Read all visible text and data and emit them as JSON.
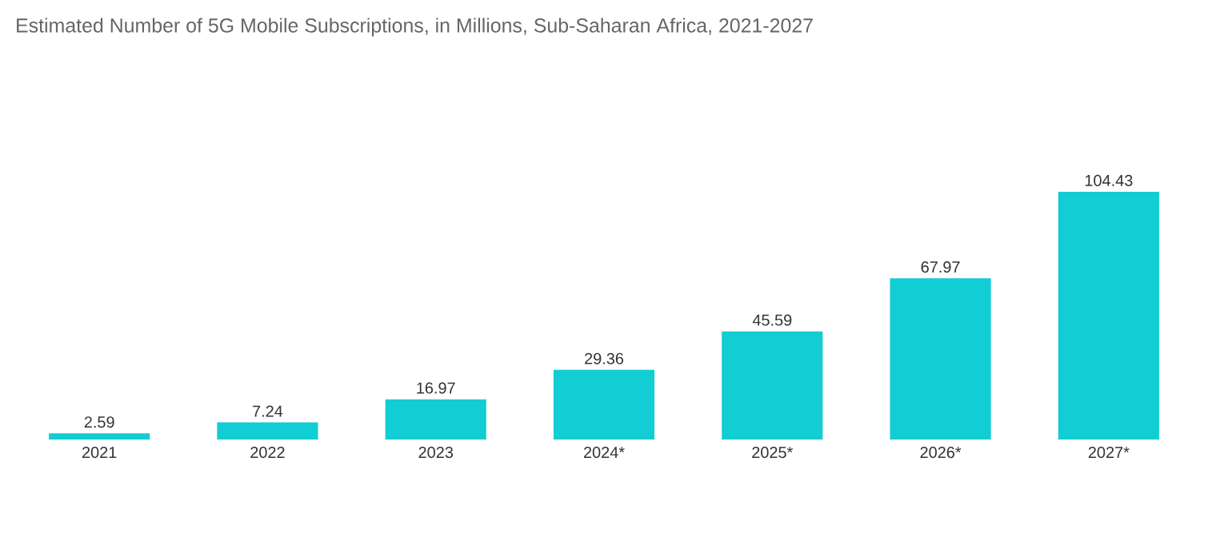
{
  "chart_data": {
    "type": "bar",
    "title": "Estimated Number of 5G Mobile Subscriptions, in Millions, Sub-Saharan Africa, 2021-2027",
    "categories": [
      "2021",
      "2022",
      "2023",
      "2024*",
      "2025*",
      "2026*",
      "2027*"
    ],
    "values": [
      2.59,
      7.24,
      16.97,
      29.36,
      45.59,
      67.97,
      104.43
    ],
    "color": "#12cdd4",
    "data_labels": true
  }
}
